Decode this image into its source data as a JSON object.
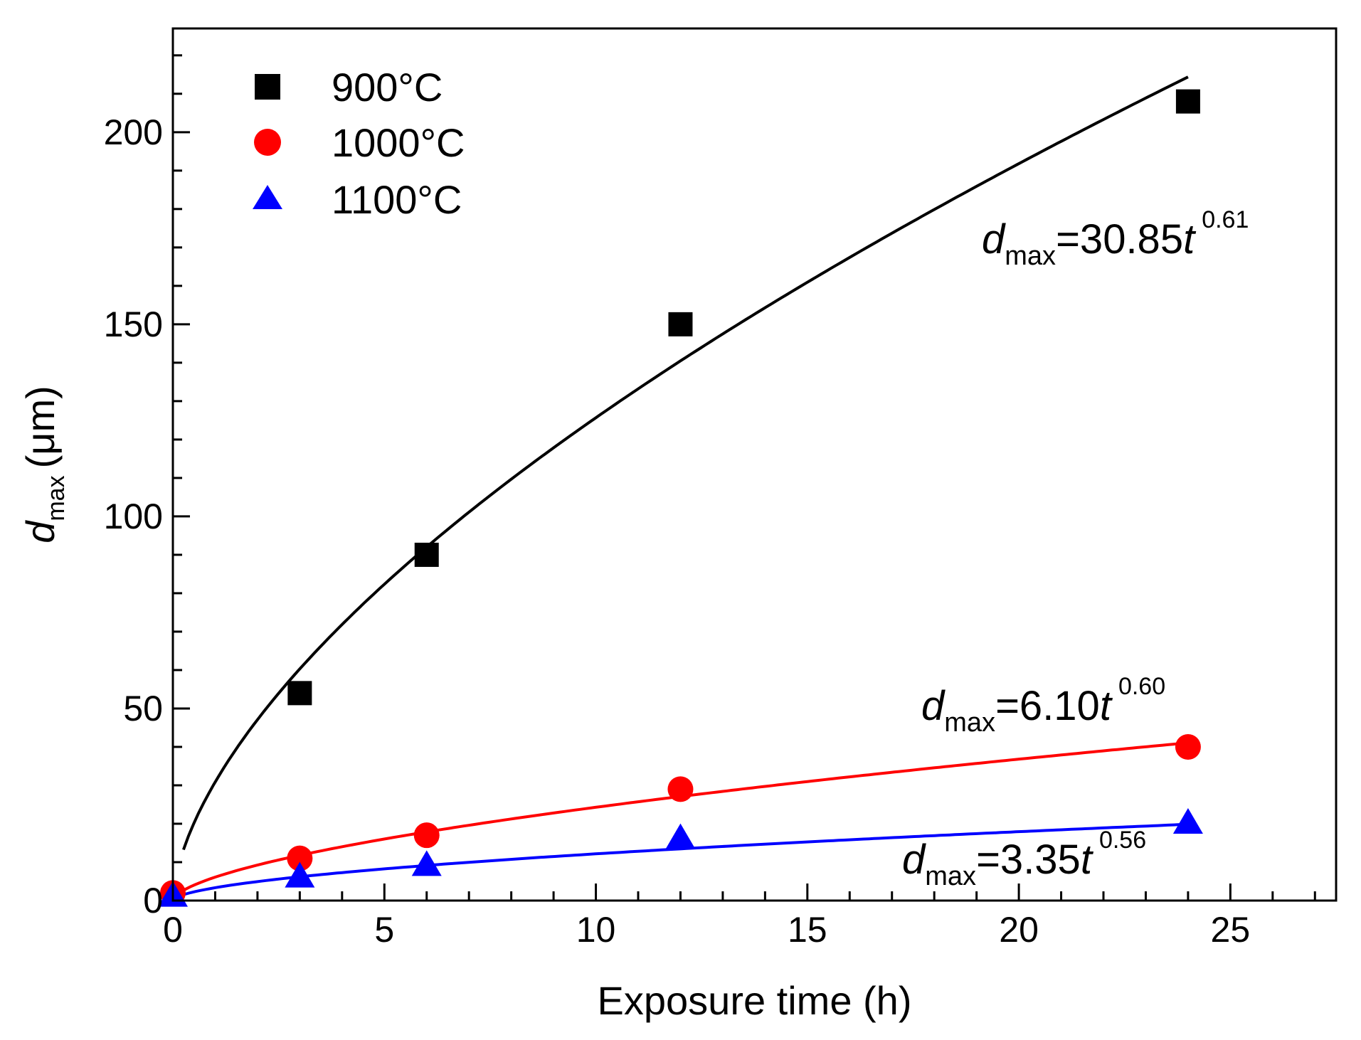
{
  "chart_data": {
    "type": "scatter",
    "title": "",
    "xlabel": "Exposure time (h)",
    "ylabel": {
      "symbol": "d",
      "subscript": "max",
      "unit": "(μm)"
    },
    "xlim": [
      0,
      27.5
    ],
    "ylim": [
      0,
      227
    ],
    "x_ticks": [
      0,
      5,
      10,
      15,
      20,
      25
    ],
    "y_ticks": [
      0,
      50,
      100,
      150,
      200
    ],
    "x_tick_labels": [
      "0",
      "5",
      "10",
      "15",
      "20",
      "25"
    ],
    "y_tick_labels": [
      "0",
      "50",
      "100",
      "150",
      "200"
    ],
    "x_minor_step": 1,
    "y_minor_step": 10,
    "legend_position": "top-left",
    "series": [
      {
        "name": "900°C",
        "color": "#000000",
        "marker": "square",
        "x": [
          3,
          6,
          12,
          24
        ],
        "y": [
          54,
          90,
          150,
          208
        ],
        "fit": {
          "a": 30.85,
          "b": 0.61,
          "x_start": 0.25,
          "x_end": 24
        },
        "equation": {
          "d": "d",
          "sub": "max",
          "mid": "=30.85",
          "t": "t",
          "exp": "0.61"
        }
      },
      {
        "name": "1000°C",
        "color": "#ff0000",
        "marker": "circle",
        "x": [
          0,
          3,
          6,
          12,
          24
        ],
        "y": [
          2,
          11,
          17,
          29,
          40
        ],
        "fit": {
          "a": 6.1,
          "b": 0.6,
          "x_start": 0.05,
          "x_end": 24
        },
        "equation": {
          "d": "d",
          "sub": "max",
          "mid": "=6.10",
          "t": "t",
          "exp": "0.60"
        }
      },
      {
        "name": "1100°C",
        "color": "#0000ff",
        "marker": "triangle",
        "x": [
          0,
          3,
          6,
          12,
          24
        ],
        "y": [
          1,
          6,
          9,
          16,
          20
        ],
        "fit": {
          "a": 3.35,
          "b": 0.56,
          "x_start": 0.05,
          "x_end": 24
        },
        "equation": {
          "d": "d",
          "sub": "max",
          "mid": "=3.35",
          "t": "t",
          "exp": "0.56"
        }
      }
    ]
  }
}
